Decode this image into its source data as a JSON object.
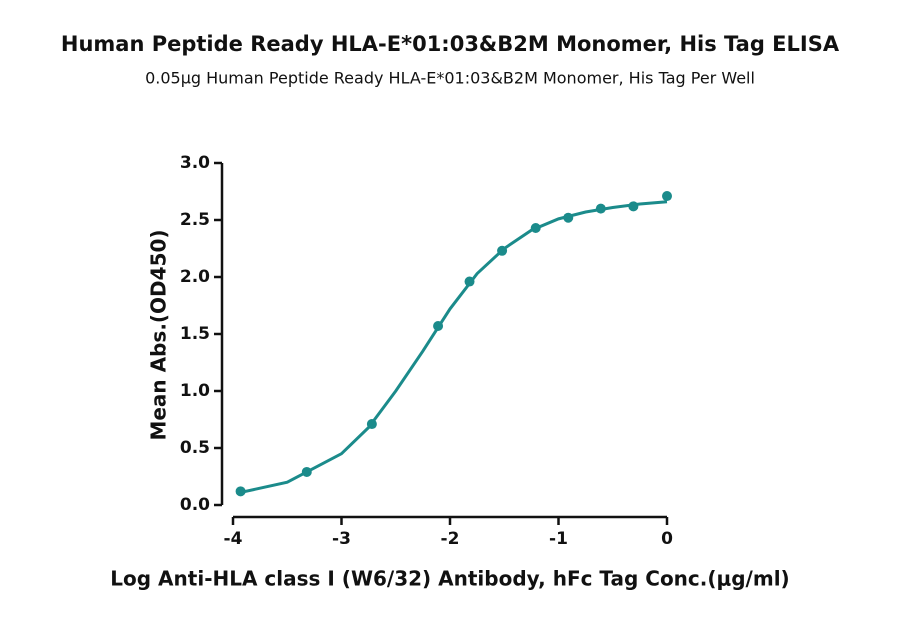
{
  "chart_data": {
    "type": "scatter",
    "title": "Human Peptide Ready HLA-E*01:03&B2M Monomer, His Tag ELISA",
    "subtitle": "0.05μg Human Peptide Ready HLA-E*01:03&B2M Monomer, His Tag Per Well",
    "x_label": "Log Anti-HLA class I (W6/32) Antibody, hFc Tag Conc.(μg/ml)",
    "y_label": "Mean Abs.(OD450)",
    "series": [
      {
        "type": "scatter",
        "color": "#1b8b8b",
        "x": [
          -3.93,
          -3.32,
          -2.72,
          -2.11,
          -1.82,
          -1.52,
          -1.21,
          -0.91,
          -0.61,
          -0.31,
          0
        ],
        "values": [
          0.12,
          0.29,
          0.71,
          1.57,
          1.96,
          2.23,
          2.43,
          2.52,
          2.6,
          2.62,
          2.71
        ]
      },
      {
        "type": "line",
        "color": "#1b8b8b",
        "x": [
          -3.93,
          -3.5,
          -3.0,
          -2.75,
          -2.5,
          -2.25,
          -2.0,
          -1.75,
          -1.5,
          -1.25,
          -1.0,
          -0.75,
          -0.5,
          -0.25,
          0
        ],
        "values": [
          0.11,
          0.2,
          0.45,
          0.68,
          1.0,
          1.35,
          1.72,
          2.03,
          2.25,
          2.41,
          2.51,
          2.57,
          2.61,
          2.64,
          2.66
        ]
      }
    ],
    "xlim": [
      -4,
      0
    ],
    "xticks": [
      -4,
      -3,
      -2,
      -1,
      0
    ],
    "ylim": [
      0,
      3
    ],
    "yticks": [
      {
        "value": 0,
        "label": "0.0"
      },
      {
        "value": 0.5,
        "label": "0.5"
      },
      {
        "value": 1,
        "label": "1.0"
      },
      {
        "value": 1.5,
        "label": "1.5"
      },
      {
        "value": 2,
        "label": "2.0"
      },
      {
        "value": 2.5,
        "label": "2.5"
      },
      {
        "value": 3,
        "label": "3.0"
      }
    ]
  }
}
